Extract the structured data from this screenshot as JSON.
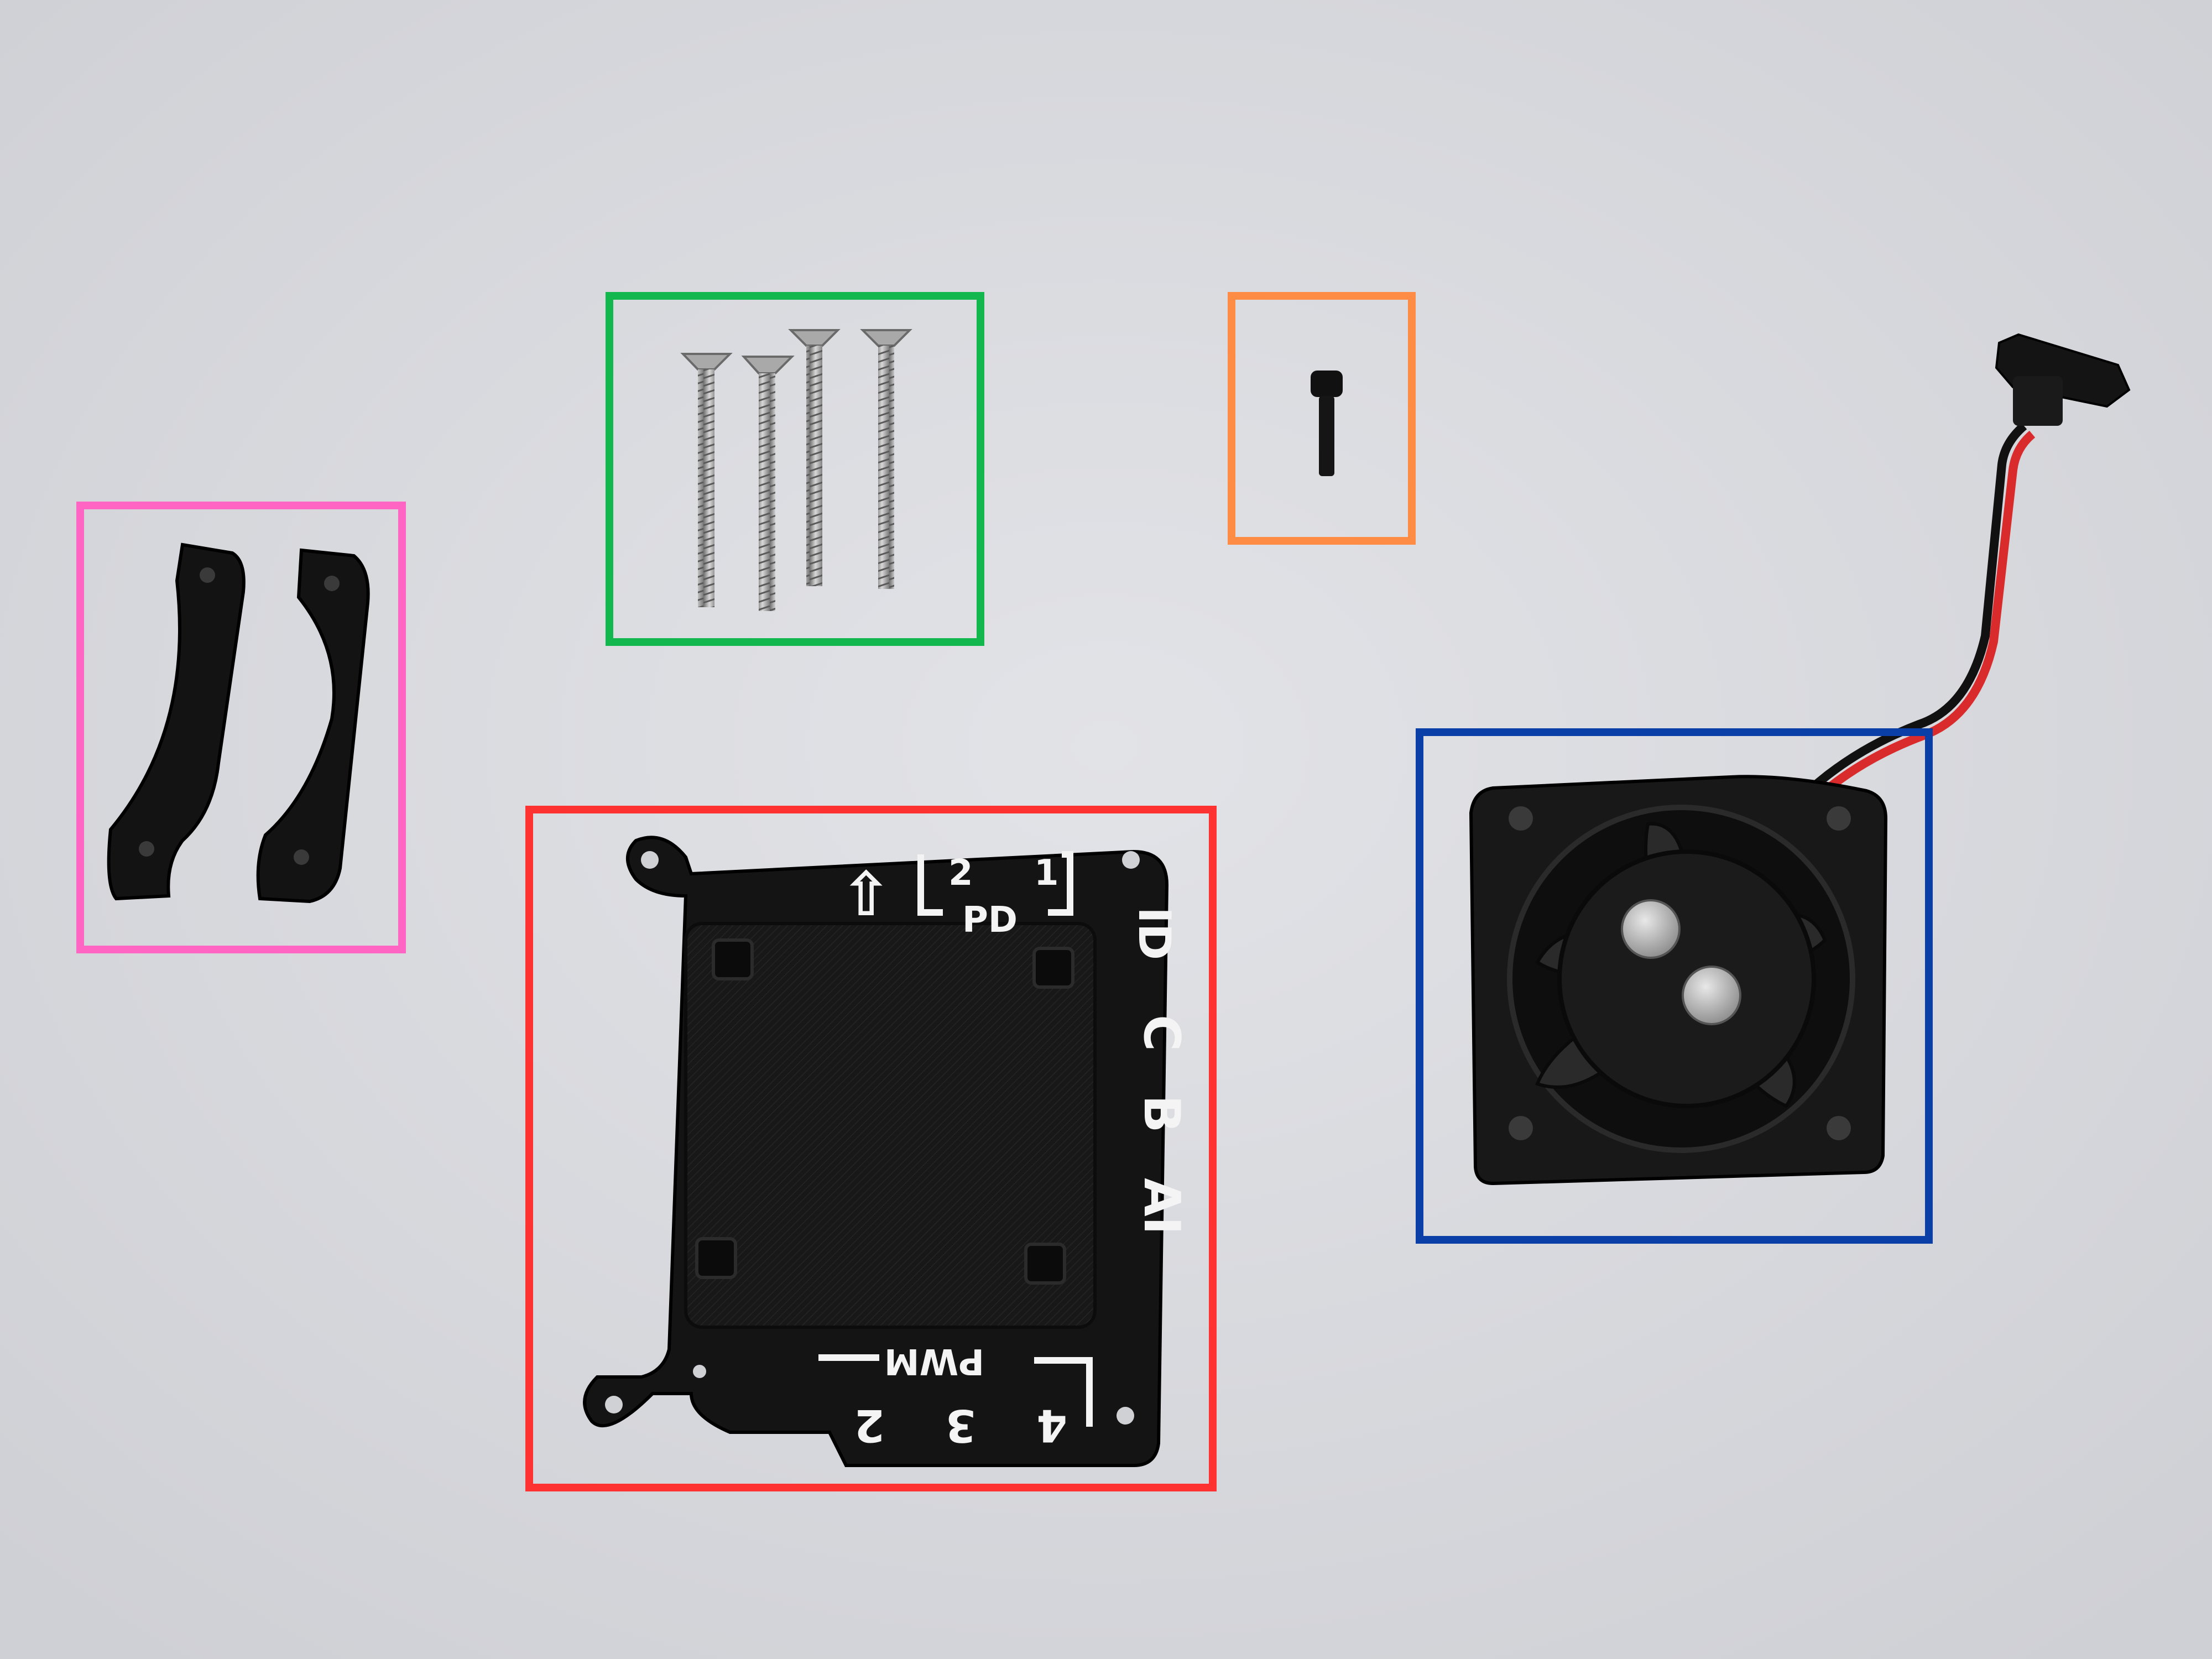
{
  "scene": {
    "background": "#dcdde1",
    "description_free": true
  },
  "callouts": [
    {
      "id": "brackets",
      "color": "#ff66c4",
      "item": "two curved black printed brackets"
    },
    {
      "id": "long-screws",
      "color": "#12b84e",
      "item": "four countersunk steel screws"
    },
    {
      "id": "small-screw",
      "color": "#ff8c45",
      "item": "one black cap screw"
    },
    {
      "id": "mount-plate",
      "color": "#ff3232",
      "item": "black printed mounting plate"
    },
    {
      "id": "fan",
      "color": "#0b3fa8",
      "item": "40 mm fan with magnets and cable"
    }
  ],
  "plate_labels": {
    "arrow": "⇧",
    "pd_top_left": "2",
    "pd_top_right": "1",
    "pd_word": "PD",
    "side_id": "ID",
    "side_c": "C",
    "side_b": "B",
    "side_a": "AI",
    "pwm_word": "PWM",
    "pwm_4": "4",
    "pwm_3": "3",
    "pwm_2": "2"
  },
  "colors": {
    "part_black": "#151515",
    "steel": "#9a9a9a",
    "wire_red": "#d92b2b",
    "wire_black": "#111111",
    "print_white": "#f4f4f4"
  }
}
